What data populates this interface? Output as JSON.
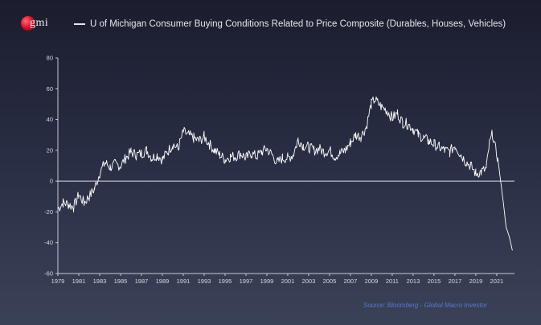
{
  "logo_text": "gmi",
  "source_text": "Source: Bloomberg - Global Macro Investor",
  "chart_data": {
    "type": "line",
    "title": "",
    "xlabel": "",
    "ylabel": "",
    "legend": "top",
    "grid": false,
    "xlim": [
      1979,
      2022.7
    ],
    "ylim": [
      -60,
      80
    ],
    "yticks": [
      -60,
      -40,
      -20,
      0,
      20,
      40,
      60,
      80
    ],
    "xticks": [
      "1979",
      "1981",
      "1983",
      "1985",
      "1987",
      "1989",
      "1991",
      "1993",
      "1995",
      "1997",
      "1999",
      "2001",
      "2003",
      "2005",
      "2007",
      "2009",
      "2011",
      "2013",
      "2015",
      "2017",
      "2019",
      "2021"
    ],
    "line_color": "#ffffff",
    "series": [
      {
        "name": "U of Michigan Consumer Buying Conditions Related to Price Composite (Durables, Houses, Vehicles)",
        "x": [
          1979.0,
          1979.5,
          1980.0,
          1980.5,
          1981.0,
          1981.5,
          1982.0,
          1982.5,
          1983.0,
          1983.5,
          1984.0,
          1984.5,
          1985.0,
          1985.5,
          1986.0,
          1986.5,
          1987.0,
          1987.5,
          1988.0,
          1988.5,
          1989.0,
          1989.5,
          1990.0,
          1990.5,
          1991.0,
          1991.5,
          1992.0,
          1992.5,
          1993.0,
          1993.5,
          1994.0,
          1994.5,
          1995.0,
          1995.5,
          1996.0,
          1996.5,
          1997.0,
          1997.5,
          1998.0,
          1998.5,
          1999.0,
          1999.5,
          2000.0,
          2000.5,
          2001.0,
          2001.5,
          2002.0,
          2002.5,
          2003.0,
          2003.5,
          2004.0,
          2004.5,
          2005.0,
          2005.5,
          2006.0,
          2006.5,
          2007.0,
          2007.5,
          2008.0,
          2008.5,
          2009.0,
          2009.3,
          2009.6,
          2010.0,
          2010.5,
          2011.0,
          2011.5,
          2012.0,
          2012.5,
          2013.0,
          2013.5,
          2014.0,
          2014.5,
          2015.0,
          2015.5,
          2016.0,
          2016.5,
          2017.0,
          2017.5,
          2018.0,
          2018.5,
          2019.0,
          2019.5,
          2020.0,
          2020.3,
          2020.6,
          2020.9,
          2021.1,
          2021.3,
          2021.6,
          2021.9,
          2022.2,
          2022.5
        ],
        "y": [
          -18,
          -14,
          -15,
          -17,
          -9,
          -14,
          -10,
          -5,
          5,
          12,
          9,
          11,
          10,
          15,
          19,
          17,
          18,
          20,
          15,
          17,
          14,
          19,
          24,
          21,
          32,
          30,
          28,
          26,
          29,
          24,
          20,
          17,
          14,
          16,
          16,
          18,
          15,
          18,
          16,
          19,
          21,
          17,
          12,
          15,
          15,
          17,
          27,
          23,
          22,
          20,
          21,
          19,
          20,
          16,
          18,
          20,
          25,
          30,
          29,
          35,
          50,
          53,
          51,
          48,
          46,
          41,
          44,
          38,
          37,
          34,
          30,
          28,
          26,
          24,
          22,
          20,
          19,
          23,
          18,
          13,
          10,
          5,
          6,
          8,
          24,
          31,
          20,
          15,
          4,
          -12,
          -30,
          -36,
          -45
        ]
      }
    ]
  }
}
